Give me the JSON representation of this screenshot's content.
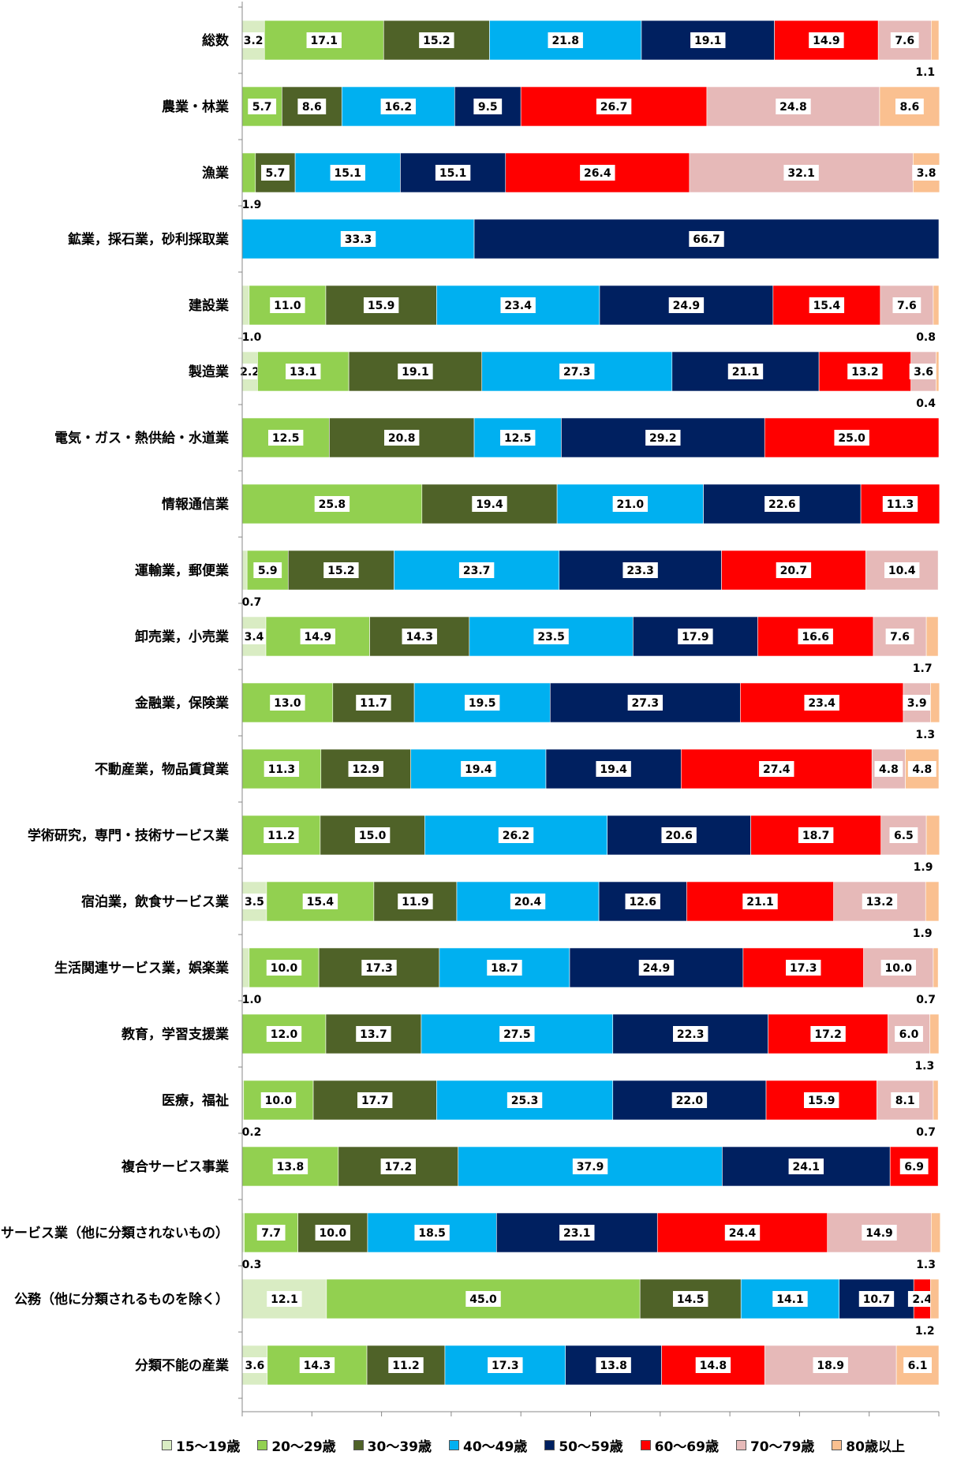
{
  "chart_data": {
    "type": "bar",
    "orientation": "horizontal",
    "stacked": true,
    "categories": [
      "総数",
      "農業・林業",
      "漁業",
      "鉱業，採石業，砂利採取業",
      "建設業",
      "製造業",
      "電気・ガス・熱供給・水道業",
      "情報通信業",
      "運輸業，郵便業",
      "卸売業，小売業",
      "金融業，保険業",
      "不動産業，物品賃貸業",
      "学術研究，専門・技術サービス業",
      "宿泊業，飲食サービス業",
      "生活関連サービス業，娯楽業",
      "教育，学習支援業",
      "医療，福祉",
      "複合サービス事業",
      "サービス業（他に分類されないもの）",
      "公務（他に分類されるものを除く）",
      "分類不能の産業"
    ],
    "series": [
      {
        "name": "15～19歳",
        "color": "#d9ecc3",
        "values": [
          3.2,
          0,
          0,
          0,
          1.0,
          2.2,
          0,
          0,
          0.7,
          3.4,
          0,
          0,
          0,
          3.5,
          1.0,
          0,
          0.2,
          0,
          0.3,
          12.1,
          3.6
        ],
        "labels": [
          "3.2",
          "",
          "",
          "",
          "",
          "2.2",
          "",
          "",
          "",
          "3.4",
          "",
          "",
          "",
          "3.5",
          "",
          "",
          "",
          "",
          "",
          "12.1",
          "3.6"
        ]
      },
      {
        "name": "20～29歳",
        "color": "#92d050",
        "values": [
          17.1,
          5.7,
          1.9,
          0,
          11.0,
          13.1,
          12.5,
          25.8,
          5.9,
          14.9,
          13.0,
          11.3,
          11.2,
          15.4,
          10.0,
          12.0,
          10.0,
          13.8,
          7.7,
          45.0,
          14.3
        ],
        "labels": [
          "17.1",
          "5.7",
          "",
          "",
          "11.0",
          "13.1",
          "12.5",
          "25.8",
          "5.9",
          "14.9",
          "13.0",
          "11.3",
          "11.2",
          "15.4",
          "10.0",
          "12.0",
          "10.0",
          "13.8",
          "7.7",
          "45.0",
          "14.3"
        ]
      },
      {
        "name": "30～39歳",
        "color": "#4f6228",
        "values": [
          15.2,
          8.6,
          5.7,
          0,
          15.9,
          19.1,
          20.8,
          19.4,
          15.2,
          14.3,
          11.7,
          12.9,
          15.0,
          11.9,
          17.3,
          13.7,
          17.7,
          17.2,
          10.0,
          14.5,
          11.2
        ],
        "labels": [
          "15.2",
          "8.6",
          "5.7",
          "",
          "15.9",
          "19.1",
          "20.8",
          "19.4",
          "15.2",
          "14.3",
          "11.7",
          "12.9",
          "15.0",
          "11.9",
          "17.3",
          "13.7",
          "17.7",
          "17.2",
          "10.0",
          "14.5",
          "11.2"
        ]
      },
      {
        "name": "40～49歳",
        "color": "#00b0f0",
        "values": [
          21.8,
          16.2,
          15.1,
          33.3,
          23.4,
          27.3,
          12.5,
          21.0,
          23.7,
          23.5,
          19.5,
          19.4,
          26.2,
          20.4,
          18.7,
          27.5,
          25.3,
          37.9,
          18.5,
          14.1,
          17.3
        ],
        "labels": [
          "21.8",
          "16.2",
          "15.1",
          "33.3",
          "23.4",
          "27.3",
          "12.5",
          "21.0",
          "23.7",
          "23.5",
          "19.5",
          "19.4",
          "26.2",
          "20.4",
          "18.7",
          "27.5",
          "25.3",
          "37.9",
          "18.5",
          "14.1",
          "17.3"
        ]
      },
      {
        "name": "50～59歳",
        "color": "#002060",
        "values": [
          19.1,
          9.5,
          15.1,
          66.7,
          24.9,
          21.1,
          29.2,
          22.6,
          23.3,
          17.9,
          27.3,
          19.4,
          20.6,
          12.6,
          24.9,
          22.3,
          22.0,
          24.1,
          23.1,
          10.7,
          13.8
        ],
        "labels": [
          "19.1",
          "9.5",
          "15.1",
          "66.7",
          "24.9",
          "21.1",
          "29.2",
          "22.6",
          "23.3",
          "17.9",
          "27.3",
          "19.4",
          "20.6",
          "12.6",
          "24.9",
          "22.3",
          "22.0",
          "24.1",
          "23.1",
          "10.7",
          "13.8"
        ]
      },
      {
        "name": "60～69歳",
        "color": "#ff0000",
        "values": [
          14.9,
          26.7,
          26.4,
          0,
          15.4,
          13.2,
          25.0,
          11.3,
          20.7,
          16.6,
          23.4,
          27.4,
          18.7,
          21.1,
          17.3,
          17.2,
          15.9,
          6.9,
          24.4,
          2.4,
          14.8
        ],
        "labels": [
          "14.9",
          "26.7",
          "26.4",
          "",
          "15.4",
          "13.2",
          "25.0",
          "11.3",
          "20.7",
          "16.6",
          "23.4",
          "27.4",
          "18.7",
          "21.1",
          "17.3",
          "17.2",
          "15.9",
          "6.9",
          "24.4",
          "2.4",
          "14.8"
        ]
      },
      {
        "name": "70～79歳",
        "color": "#e6b9b8",
        "values": [
          7.6,
          24.8,
          32.1,
          0,
          7.6,
          3.6,
          0,
          0,
          10.4,
          7.6,
          3.9,
          4.8,
          6.5,
          13.2,
          10.0,
          6.0,
          8.1,
          0,
          14.9,
          0,
          18.9
        ],
        "labels": [
          "7.6",
          "24.8",
          "32.1",
          "",
          "7.6",
          "3.6",
          "",
          "",
          "10.4",
          "7.6",
          "3.9",
          "4.8",
          "6.5",
          "13.2",
          "10.0",
          "6.0",
          "8.1",
          "",
          "14.9",
          "",
          "18.9"
        ]
      },
      {
        "name": "80歳以上",
        "color": "#fac090",
        "values": [
          1.1,
          8.6,
          3.8,
          0,
          0.8,
          0.4,
          0,
          0,
          0,
          1.7,
          1.3,
          4.8,
          1.9,
          1.9,
          0.7,
          1.3,
          0.7,
          0,
          1.3,
          1.2,
          6.1
        ],
        "labels": [
          "",
          "8.6",
          "3.8",
          "",
          "",
          "",
          "",
          "",
          "",
          "",
          "",
          "4.8",
          "",
          "",
          "",
          "",
          "",
          "",
          "",
          "",
          "6.1"
        ]
      }
    ],
    "outside_labels": [
      {
        "category": 0,
        "series": 7,
        "text": "1.1"
      },
      {
        "category": 2,
        "series": 1,
        "text": "1.9"
      },
      {
        "category": 4,
        "series": 0,
        "text": "1.0"
      },
      {
        "category": 4,
        "series": 7,
        "text": "0.8"
      },
      {
        "category": 5,
        "series": 7,
        "text": "0.4"
      },
      {
        "category": 8,
        "series": 0,
        "text": "0.7"
      },
      {
        "category": 9,
        "series": 7,
        "text": "1.7"
      },
      {
        "category": 10,
        "series": 7,
        "text": "1.3"
      },
      {
        "category": 12,
        "series": 7,
        "text": "1.9"
      },
      {
        "category": 13,
        "series": 7,
        "text": "1.9"
      },
      {
        "category": 14,
        "series": 0,
        "text": "1.0"
      },
      {
        "category": 14,
        "series": 7,
        "text": "0.7"
      },
      {
        "category": 15,
        "series": 7,
        "text": "1.3"
      },
      {
        "category": 16,
        "series": 0,
        "text": "0.2"
      },
      {
        "category": 16,
        "series": 7,
        "text": "0.7"
      },
      {
        "category": 18,
        "series": 0,
        "text": "0.3"
      },
      {
        "category": 18,
        "series": 7,
        "text": "1.3"
      },
      {
        "category": 19,
        "series": 7,
        "text": "1.2"
      }
    ],
    "xlim": [
      0,
      100
    ],
    "xticks": [
      "0%",
      "10%",
      "20%",
      "30%",
      "40%",
      "50%",
      "60%",
      "70%",
      "80%",
      "90%",
      "100%"
    ],
    "legend_position": "bottom",
    "grid": false
  }
}
